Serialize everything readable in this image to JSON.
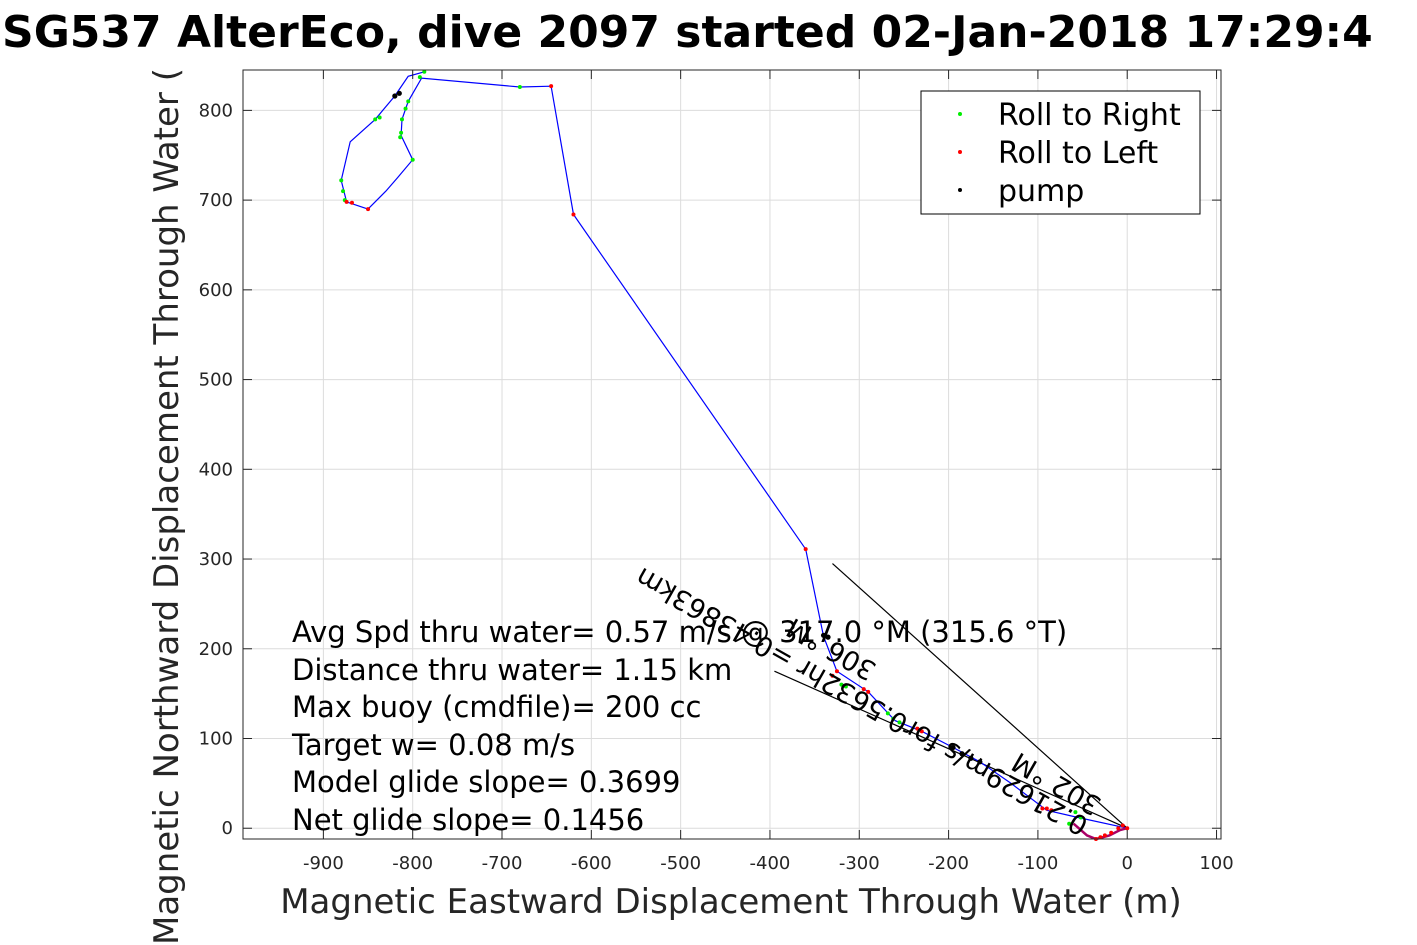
{
  "chart_data": {
    "type": "scatter",
    "title": "SG537 AlterEco, dive 2097 started 02-Jan-2018 17:29:4",
    "xlabel": "Magnetic Eastward Displacement Through Water (m)",
    "ylabel": "Magnetic Northward Displacement Through Water (",
    "xlim": [
      -990,
      105
    ],
    "ylim": [
      -12,
      845
    ],
    "xticks": [
      -900,
      -800,
      -700,
      -600,
      -500,
      -400,
      -300,
      -200,
      -100,
      0,
      100
    ],
    "yticks": [
      0,
      100,
      200,
      300,
      400,
      500,
      600,
      700,
      800
    ],
    "xtick_labels": [
      "-900",
      "-800",
      "-700",
      "-600",
      "-500",
      "-400",
      "-300",
      "-200",
      "-100",
      "0",
      "100"
    ],
    "ytick_labels": [
      "0",
      "100",
      "200",
      "300",
      "400",
      "500",
      "600",
      "700",
      "800"
    ],
    "grid": true,
    "legend_position": "top-right",
    "colors": {
      "track": "#0000ff",
      "roll_right": "#00ee00",
      "roll_left": "#ff0000",
      "pump": "#000000",
      "overlap_purple": "#aa0066",
      "pump_blue": "#000080"
    },
    "series": [
      {
        "name": "Roll to Right",
        "color": "#00ee00",
        "points": [
          [
            -787,
            843
          ],
          [
            -792,
            837
          ],
          [
            -805,
            810
          ],
          [
            -808,
            802
          ],
          [
            -812,
            790
          ],
          [
            -813,
            775
          ],
          [
            -814,
            770
          ],
          [
            -837,
            792
          ],
          [
            -842,
            790
          ],
          [
            -880,
            722
          ],
          [
            -878,
            710
          ],
          [
            -876,
            700
          ],
          [
            -800,
            745
          ],
          [
            -680,
            826
          ],
          [
            -52,
            12
          ],
          [
            -58,
            18
          ],
          [
            -65,
            5
          ],
          [
            -320,
            160
          ],
          [
            -315,
            158
          ],
          [
            -262,
            122
          ],
          [
            -268,
            128
          ],
          [
            -255,
            118
          ]
        ]
      },
      {
        "name": "Roll to Left",
        "color": "#ff0000",
        "points": [
          [
            -645,
            827
          ],
          [
            -620,
            684
          ],
          [
            -360,
            311
          ],
          [
            -874,
            698
          ],
          [
            -868,
            697
          ],
          [
            -850,
            690
          ],
          [
            -325,
            175
          ],
          [
            -330,
            170
          ],
          [
            -290,
            152
          ],
          [
            -295,
            155
          ],
          [
            -230,
            108
          ],
          [
            -235,
            111
          ],
          [
            -85,
            20
          ],
          [
            -90,
            22
          ],
          [
            -95,
            22
          ],
          [
            -35,
            -12
          ],
          [
            -30,
            -10
          ],
          [
            -25,
            -8
          ],
          [
            -18,
            -5
          ],
          [
            -10,
            0
          ],
          [
            -5,
            3
          ],
          [
            0,
            0
          ]
        ]
      },
      {
        "name": "pump",
        "color": "#000000",
        "points": [
          [
            -820,
            816
          ],
          [
            -815,
            819
          ],
          [
            -340,
            215
          ],
          [
            -335,
            213
          ],
          [
            -195,
            90
          ],
          [
            -185,
            83
          ],
          [
            -175,
            78
          ],
          [
            -165,
            74
          ]
        ]
      }
    ],
    "track": [
      [
        0,
        0
      ],
      [
        -55,
        12
      ],
      [
        -90,
        20
      ],
      [
        -130,
        50
      ],
      [
        -165,
        74
      ],
      [
        -195,
        90
      ],
      [
        -230,
        108
      ],
      [
        -260,
        120
      ],
      [
        -290,
        152
      ],
      [
        -325,
        175
      ],
      [
        -340,
        214
      ],
      [
        -360,
        311
      ],
      [
        -620,
        684
      ],
      [
        -645,
        827
      ],
      [
        -680,
        826
      ],
      [
        -790,
        836
      ],
      [
        -805,
        810
      ],
      [
        -812,
        790
      ],
      [
        -813,
        772
      ],
      [
        -800,
        745
      ],
      [
        -817,
        725
      ],
      [
        -830,
        710
      ],
      [
        -850,
        690
      ],
      [
        -874,
        698
      ],
      [
        -880,
        722
      ],
      [
        -870,
        765
      ],
      [
        -842,
        790
      ],
      [
        -820,
        816
      ],
      [
        -805,
        838
      ],
      [
        -787,
        843
      ]
    ],
    "track_loop_end": [
      [
        -60,
        5
      ],
      [
        -45,
        -8
      ],
      [
        -35,
        -12
      ],
      [
        -20,
        -8
      ],
      [
        -8,
        -2
      ],
      [
        0,
        0
      ]
    ],
    "guide_lines": [
      [
        [
          0,
          0
        ],
        [
          -395,
          175
        ]
      ],
      [
        [
          0,
          0
        ],
        [
          -330,
          295
        ]
      ]
    ],
    "legend": [
      {
        "label": "Roll to Right",
        "color": "#00ee00"
      },
      {
        "label": "Roll to Left",
        "color": "#ff0000"
      },
      {
        "label": "pump",
        "color": "#000000"
      }
    ],
    "info_lines": [
      "Avg Spd thru water=  0.57 m/s @ 317.0 °M (315.6 °T)",
      "Distance thru water=  1.15 km",
      "Max buoy (cmdfile)= 200 cc",
      "Target w= 0.08 m/s",
      "Model glide slope= 0.3699",
      "Net glide slope= 0.1456"
    ],
    "annotations": [
      "0.21629m/s for0.5632hr =0.43863km",
      "306 °M",
      "302 °M"
    ]
  }
}
